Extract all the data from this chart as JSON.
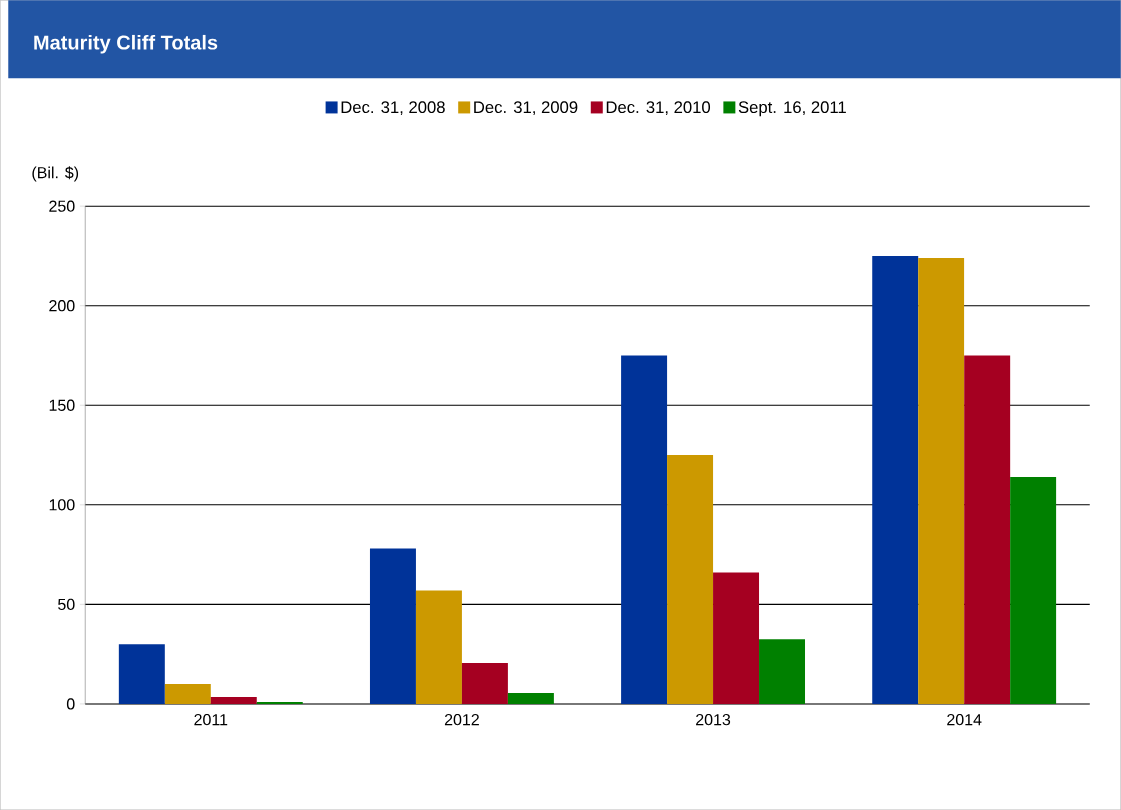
{
  "chart_data": {
    "type": "bar",
    "title": "Maturity Cliff Totals",
    "ylabel": "(Bil. $)",
    "categories": [
      "2011",
      "2012",
      "2013",
      "2014"
    ],
    "series": [
      {
        "name": "Dec. 31, 2008",
        "color": "#003399",
        "values": [
          30,
          78,
          175,
          225
        ]
      },
      {
        "name": "Dec. 31, 2009",
        "color": "#cc9900",
        "values": [
          10,
          57,
          125,
          224
        ]
      },
      {
        "name": "Dec. 31, 2010",
        "color": "#a50021",
        "values": [
          3.5,
          20.5,
          66,
          175
        ]
      },
      {
        "name": "Sept. 16, 2011",
        "color": "#008000",
        "values": [
          1,
          5.5,
          32.5,
          114
        ]
      }
    ],
    "ylim": [
      0,
      250
    ],
    "yticks": [
      0,
      50,
      100,
      150,
      200,
      250
    ],
    "grid": "y",
    "legend": "top"
  }
}
